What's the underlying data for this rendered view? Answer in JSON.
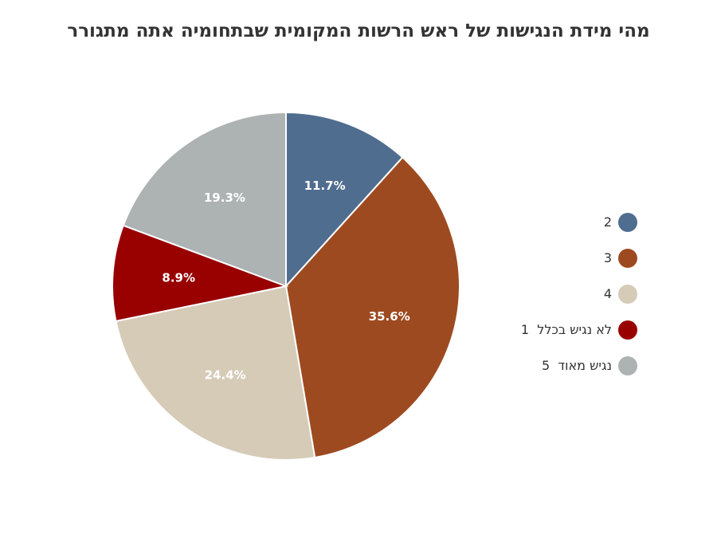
{
  "chart_data": {
    "type": "pie",
    "title": "מהי מידת הנגישות של ראש הרשות המקומית שבתחומיה אתה מתגורר",
    "slices": [
      {
        "label": "2",
        "value": 11.7,
        "display": "11.7%",
        "color": "#4f6d8f"
      },
      {
        "label": "3",
        "value": 35.6,
        "display": "35.6%",
        "color": "#9e4a20"
      },
      {
        "label": "4",
        "value": 24.4,
        "display": "24.4%",
        "color": "#d5cbb7"
      },
      {
        "label": "לא נגיש בכלל  1",
        "value": 8.9,
        "display": "8.9%",
        "color": "#990000"
      },
      {
        "label": "נגיש מאוד  5",
        "value": 19.3,
        "display": "19.3%",
        "color": "#adb2b3"
      }
    ],
    "start_angle": "12 o'clock",
    "direction": "clockwise",
    "legend_position": "right"
  }
}
